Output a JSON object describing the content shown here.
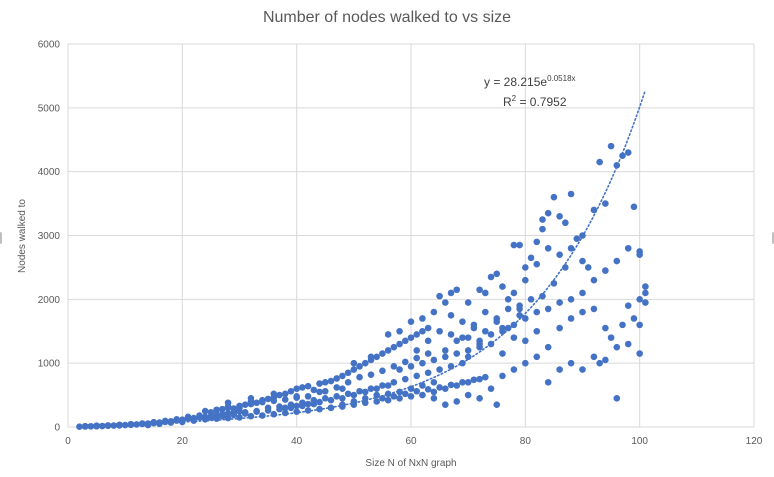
{
  "chart_data": {
    "type": "scatter",
    "title": "Number of nodes walked to vs size",
    "xlabel": "Size N of NxN graph",
    "ylabel": "Nodes walked to",
    "xlim": [
      0,
      120
    ],
    "ylim": [
      0,
      6000
    ],
    "x_ticks": [
      "0",
      "20",
      "40",
      "60",
      "80",
      "100",
      "120"
    ],
    "y_ticks": [
      "0",
      "1000",
      "2000",
      "3000",
      "4000",
      "5000",
      "6000"
    ],
    "grid": true,
    "legend": "none",
    "marker_color": "#4472c4",
    "trendline": {
      "type": "exponential",
      "a": 28.215,
      "b": 0.0518,
      "x_range": [
        2,
        101
      ],
      "equation_prefix": "y = 28.215e",
      "equation_exponent": "0.0518x",
      "r2_prefix": "R",
      "r2_exponent": "2",
      "r2_value": " = 0.7952"
    },
    "points": [
      [
        2,
        5
      ],
      [
        3,
        8
      ],
      [
        4,
        10
      ],
      [
        5,
        12
      ],
      [
        6,
        15
      ],
      [
        7,
        18
      ],
      [
        8,
        22
      ],
      [
        9,
        25
      ],
      [
        10,
        30
      ],
      [
        11,
        35
      ],
      [
        12,
        40
      ],
      [
        13,
        48
      ],
      [
        14,
        55
      ],
      [
        15,
        60
      ],
      [
        16,
        70
      ],
      [
        17,
        80
      ],
      [
        18,
        90
      ],
      [
        19,
        100
      ],
      [
        20,
        115
      ],
      [
        21,
        130
      ],
      [
        22,
        140
      ],
      [
        23,
        150
      ],
      [
        24,
        160
      ],
      [
        25,
        170
      ],
      [
        26,
        185
      ],
      [
        27,
        200
      ],
      [
        28,
        215
      ],
      [
        29,
        230
      ],
      [
        30,
        245
      ],
      [
        3,
        12
      ],
      [
        5,
        20
      ],
      [
        7,
        25
      ],
      [
        9,
        35
      ],
      [
        11,
        45
      ],
      [
        13,
        55
      ],
      [
        15,
        75
      ],
      [
        17,
        95
      ],
      [
        19,
        120
      ],
      [
        21,
        160
      ],
      [
        23,
        180
      ],
      [
        25,
        230
      ],
      [
        26,
        260
      ],
      [
        27,
        280
      ],
      [
        28,
        320
      ],
      [
        29,
        290
      ],
      [
        30,
        300
      ],
      [
        31,
        350
      ],
      [
        32,
        400
      ],
      [
        33,
        380
      ],
      [
        34,
        420
      ],
      [
        35,
        440
      ],
      [
        36,
        460
      ],
      [
        37,
        500
      ],
      [
        38,
        520
      ],
      [
        39,
        560
      ],
      [
        40,
        600
      ],
      [
        41,
        620
      ],
      [
        42,
        640
      ],
      [
        43,
        580
      ],
      [
        44,
        680
      ],
      [
        45,
        700
      ],
      [
        46,
        720
      ],
      [
        47,
        760
      ],
      [
        48,
        800
      ],
      [
        49,
        850
      ],
      [
        50,
        900
      ],
      [
        51,
        950
      ],
      [
        52,
        1000
      ],
      [
        53,
        1050
      ],
      [
        54,
        1100
      ],
      [
        55,
        1150
      ],
      [
        56,
        1200
      ],
      [
        57,
        1250
      ],
      [
        58,
        1300
      ],
      [
        59,
        1350
      ],
      [
        60,
        1400
      ],
      [
        61,
        1450
      ],
      [
        62,
        1500
      ],
      [
        63,
        1550
      ],
      [
        14,
        30
      ],
      [
        16,
        50
      ],
      [
        18,
        70
      ],
      [
        20,
        80
      ],
      [
        22,
        100
      ],
      [
        24,
        120
      ],
      [
        26,
        130
      ],
      [
        28,
        140
      ],
      [
        30,
        150
      ],
      [
        32,
        170
      ],
      [
        34,
        180
      ],
      [
        36,
        200
      ],
      [
        38,
        220
      ],
      [
        40,
        240
      ],
      [
        42,
        260
      ],
      [
        44,
        280
      ],
      [
        46,
        300
      ],
      [
        48,
        320
      ],
      [
        50,
        350
      ],
      [
        52,
        380
      ],
      [
        54,
        400
      ],
      [
        56,
        420
      ],
      [
        58,
        450
      ],
      [
        60,
        480
      ],
      [
        62,
        500
      ],
      [
        64,
        550
      ],
      [
        66,
        600
      ],
      [
        68,
        650
      ],
      [
        70,
        700
      ],
      [
        72,
        750
      ],
      [
        31,
        230
      ],
      [
        33,
        250
      ],
      [
        35,
        300
      ],
      [
        37,
        320
      ],
      [
        39,
        350
      ],
      [
        41,
        380
      ],
      [
        43,
        420
      ],
      [
        45,
        450
      ],
      [
        47,
        480
      ],
      [
        49,
        520
      ],
      [
        51,
        560
      ],
      [
        53,
        600
      ],
      [
        55,
        650
      ],
      [
        57,
        700
      ],
      [
        59,
        750
      ],
      [
        61,
        800
      ],
      [
        63,
        850
      ],
      [
        65,
        900
      ],
      [
        67,
        950
      ],
      [
        69,
        1000
      ],
      [
        28,
        380
      ],
      [
        32,
        450
      ],
      [
        36,
        520
      ],
      [
        40,
        480
      ],
      [
        44,
        550
      ],
      [
        48,
        600
      ],
      [
        50,
        1000
      ],
      [
        53,
        1100
      ],
      [
        56,
        1450
      ],
      [
        58,
        1500
      ],
      [
        60,
        1650
      ],
      [
        62,
        1700
      ],
      [
        64,
        1800
      ],
      [
        65,
        2050
      ],
      [
        66,
        1950
      ],
      [
        67,
        2100
      ],
      [
        68,
        2150
      ],
      [
        70,
        1950
      ],
      [
        72,
        2150
      ],
      [
        73,
        2100
      ],
      [
        74,
        2350
      ],
      [
        75,
        2400
      ],
      [
        76,
        2200
      ],
      [
        77,
        2000
      ],
      [
        78,
        2850
      ],
      [
        79,
        2850
      ],
      [
        80,
        2500
      ],
      [
        81,
        2650
      ],
      [
        82,
        2900
      ],
      [
        83,
        3250
      ],
      [
        84,
        3350
      ],
      [
        85,
        3600
      ],
      [
        86,
        3300
      ],
      [
        87,
        3200
      ],
      [
        88,
        3650
      ],
      [
        89,
        2950
      ],
      [
        90,
        2600
      ],
      [
        91,
        2500
      ],
      [
        92,
        3400
      ],
      [
        93,
        4150
      ],
      [
        94,
        3500
      ],
      [
        95,
        4400
      ],
      [
        96,
        4100
      ],
      [
        97,
        4250
      ],
      [
        98,
        4300
      ],
      [
        99,
        3450
      ],
      [
        100,
        2750
      ],
      [
        101,
        2200
      ],
      [
        64,
        450
      ],
      [
        66,
        350
      ],
      [
        68,
        400
      ],
      [
        70,
        500
      ],
      [
        72,
        450
      ],
      [
        74,
        600
      ],
      [
        75,
        350
      ],
      [
        76,
        800
      ],
      [
        78,
        900
      ],
      [
        80,
        1000
      ],
      [
        82,
        1100
      ],
      [
        84,
        700
      ],
      [
        86,
        900
      ],
      [
        88,
        1000
      ],
      [
        90,
        900
      ],
      [
        92,
        1100
      ],
      [
        94,
        1050
      ],
      [
        96,
        450
      ],
      [
        98,
        1300
      ],
      [
        100,
        1150
      ],
      [
        70,
        1100
      ],
      [
        72,
        1250
      ],
      [
        74,
        1300
      ],
      [
        76,
        1500
      ],
      [
        78,
        1600
      ],
      [
        80,
        1700
      ],
      [
        82,
        1800
      ],
      [
        84,
        1850
      ],
      [
        86,
        1950
      ],
      [
        88,
        2000
      ],
      [
        90,
        2100
      ],
      [
        92,
        2300
      ],
      [
        94,
        2450
      ],
      [
        96,
        2600
      ],
      [
        98,
        2800
      ],
      [
        100,
        2700
      ],
      [
        101,
        2100
      ],
      [
        101,
        1950
      ],
      [
        99,
        1700
      ],
      [
        97,
        1600
      ],
      [
        66,
        1200
      ],
      [
        68,
        1350
      ],
      [
        70,
        1400
      ],
      [
        72,
        1300
      ],
      [
        76,
        1150
      ],
      [
        78,
        1400
      ],
      [
        80,
        1350
      ],
      [
        82,
        1500
      ],
      [
        84,
        1250
      ],
      [
        86,
        1550
      ],
      [
        88,
        1700
      ],
      [
        90,
        1800
      ],
      [
        92,
        1850
      ],
      [
        94,
        1550
      ],
      [
        96,
        1250
      ],
      [
        98,
        1900
      ],
      [
        100,
        2000
      ],
      [
        100,
        1600
      ],
      [
        95,
        1400
      ],
      [
        93,
        1000
      ],
      [
        46,
        300
      ],
      [
        48,
        350
      ],
      [
        50,
        400
      ],
      [
        52,
        450
      ],
      [
        54,
        500
      ],
      [
        56,
        520
      ],
      [
        58,
        550
      ],
      [
        60,
        600
      ],
      [
        62,
        650
      ],
      [
        64,
        700
      ],
      [
        38,
        300
      ],
      [
        40,
        330
      ],
      [
        42,
        360
      ],
      [
        44,
        390
      ],
      [
        46,
        420
      ],
      [
        48,
        450
      ],
      [
        50,
        500
      ],
      [
        52,
        550
      ],
      [
        54,
        600
      ],
      [
        56,
        650
      ],
      [
        58,
        900
      ],
      [
        60,
        950
      ],
      [
        62,
        1000
      ],
      [
        64,
        1050
      ],
      [
        66,
        1100
      ],
      [
        68,
        1150
      ],
      [
        70,
        1200
      ],
      [
        72,
        1350
      ],
      [
        74,
        1450
      ],
      [
        76,
        1550
      ],
      [
        45,
        560
      ],
      [
        47,
        620
      ],
      [
        49,
        700
      ],
      [
        51,
        780
      ],
      [
        53,
        820
      ],
      [
        55,
        880
      ],
      [
        57,
        950
      ],
      [
        59,
        1020
      ],
      [
        61,
        1080
      ],
      [
        63,
        1150
      ],
      [
        25,
        150
      ],
      [
        27,
        170
      ],
      [
        29,
        190
      ],
      [
        31,
        210
      ],
      [
        33,
        240
      ],
      [
        35,
        260
      ],
      [
        37,
        280
      ],
      [
        39,
        300
      ],
      [
        41,
        330
      ],
      [
        43,
        360
      ],
      [
        24,
        250
      ],
      [
        26,
        270
      ],
      [
        28,
        300
      ],
      [
        30,
        330
      ],
      [
        32,
        360
      ],
      [
        34,
        390
      ],
      [
        36,
        410
      ],
      [
        38,
        430
      ],
      [
        40,
        460
      ],
      [
        42,
        480
      ],
      [
        78,
        2100
      ],
      [
        80,
        2300
      ],
      [
        82,
        2550
      ],
      [
        84,
        2800
      ],
      [
        86,
        2700
      ],
      [
        88,
        2800
      ],
      [
        90,
        3000
      ],
      [
        83,
        3100
      ],
      [
        87,
        2500
      ],
      [
        79,
        1850
      ],
      [
        55,
        450
      ],
      [
        57,
        480
      ],
      [
        59,
        520
      ],
      [
        61,
        560
      ],
      [
        63,
        590
      ],
      [
        65,
        620
      ],
      [
        67,
        660
      ],
      [
        69,
        700
      ],
      [
        71,
        740
      ],
      [
        73,
        780
      ],
      [
        67,
        1750
      ],
      [
        69,
        1650
      ],
      [
        71,
        1550
      ],
      [
        73,
        1500
      ],
      [
        75,
        1700
      ],
      [
        77,
        1850
      ],
      [
        79,
        1900
      ],
      [
        81,
        2000
      ],
      [
        83,
        2050
      ],
      [
        85,
        2250
      ],
      [
        61,
        1200
      ],
      [
        63,
        1350
      ],
      [
        65,
        1500
      ],
      [
        67,
        1450
      ],
      [
        69,
        1400
      ],
      [
        71,
        1600
      ],
      [
        73,
        1800
      ],
      [
        75,
        1650
      ],
      [
        77,
        1550
      ],
      [
        79,
        1750
      ]
    ]
  }
}
